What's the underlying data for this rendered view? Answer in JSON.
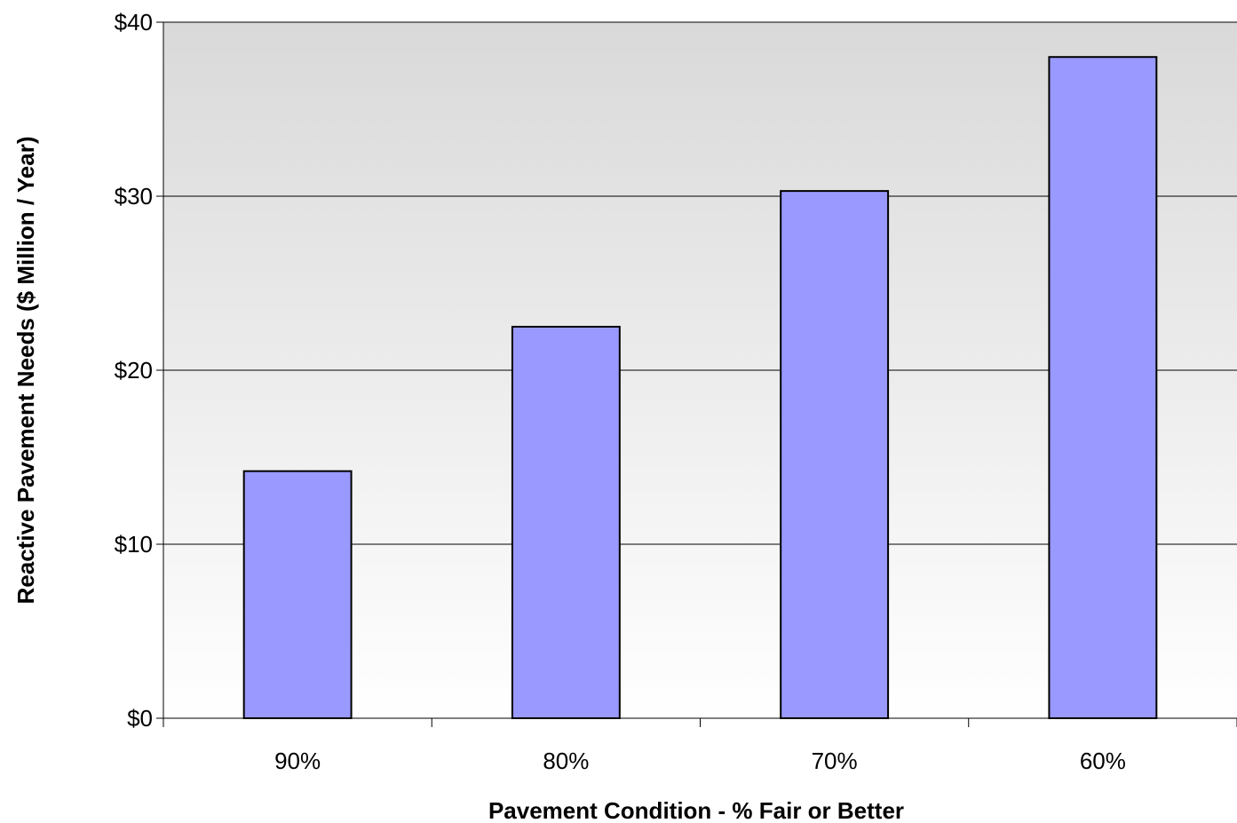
{
  "chart_data": {
    "type": "bar",
    "title": "",
    "xlabel": "Pavement Condition - % Fair or Better",
    "ylabel": "Reactive Pavement Needs ($ Million / Year)",
    "categories": [
      "90%",
      "80%",
      "70%",
      "60%"
    ],
    "series": [
      {
        "values": [
          14.2,
          22.5,
          30.3,
          38.0
        ]
      }
    ],
    "ylim": [
      0,
      40
    ],
    "yticks": [
      0,
      10,
      20,
      30,
      40
    ],
    "ytick_labels": [
      "$0",
      "$10",
      "$20",
      "$30",
      "$40"
    ],
    "grid": true,
    "legend": "none",
    "colors": {
      "bar_fill": "#9999ff",
      "bar_stroke": "#000000",
      "plot_bg_top": "#d9d9d9",
      "plot_bg_bottom": "#ffffff",
      "gridline": "#000000"
    }
  }
}
